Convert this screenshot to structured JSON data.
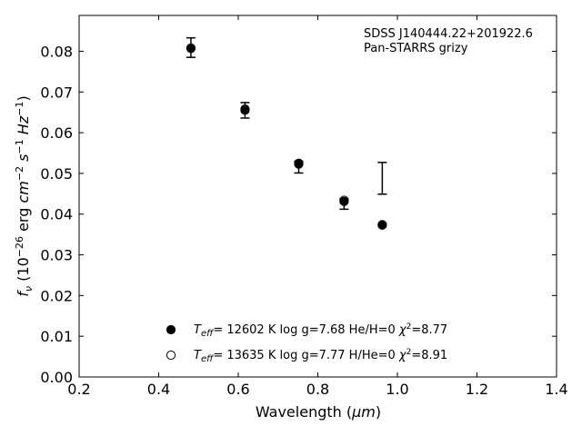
{
  "chart_data": {
    "type": "scatter",
    "xlabel_prefix": "Wavelength (",
    "xlabel_unit": "μm",
    "xlabel_suffix": ")",
    "ylabel_var": "f",
    "ylabel_var_sub": "ν",
    "ylabel_pre": " (10",
    "ylabel_exp1": "−26",
    "ylabel_mid1": " erg ",
    "ylabel_cm": "cm",
    "ylabel_exp2": "−2",
    "ylabel_s": " s",
    "ylabel_exp3": "−1",
    "ylabel_hz": " Hz",
    "ylabel_exp4": "−1",
    "ylabel_close": ")",
    "xlim": [
      0.2,
      1.4
    ],
    "ylim": [
      0.0,
      0.0888
    ],
    "x_ticks": [
      0.2,
      0.4,
      0.6,
      0.8,
      1.0,
      1.2,
      1.4
    ],
    "x_tick_labels": [
      "0.2",
      "0.4",
      "0.6",
      "0.8",
      "1.0",
      "1.2",
      "1.4"
    ],
    "y_ticks": [
      0.0,
      0.01,
      0.02,
      0.03,
      0.04,
      0.05,
      0.06,
      0.07,
      0.08
    ],
    "y_tick_labels": [
      "0.00",
      "0.01",
      "0.02",
      "0.03",
      "0.04",
      "0.05",
      "0.06",
      "0.07",
      "0.08"
    ],
    "grid": false,
    "annotation": [
      "SDSS J140444.22+201922.6",
      "Pan-STARRS grizy"
    ],
    "observed": {
      "x": [
        0.481,
        0.617,
        0.752,
        0.866,
        0.962
      ],
      "y_low": [
        0.0785,
        0.0636,
        0.0501,
        0.0412,
        0.0449
      ],
      "y_high": [
        0.0833,
        0.0674,
        0.053,
        0.0438,
        0.0527
      ]
    },
    "series": [
      {
        "name_T": "T",
        "name_T_sub": "eff",
        "name_rest": "= 12602 K  log g=7.68  He/H=0  ",
        "name_chi": "χ",
        "name_chi_sup": "2",
        "name_tail": "=8.77",
        "marker": "filled",
        "x": [
          0.481,
          0.617,
          0.752,
          0.866,
          0.962
        ],
        "y": [
          0.0807,
          0.0658,
          0.0525,
          0.0431,
          0.0374
        ]
      },
      {
        "name_T": "T",
        "name_T_sub": "eff",
        "name_rest": "= 13635 K  log g=7.77  H/He=0  ",
        "name_chi": "χ",
        "name_chi_sup": "2",
        "name_tail": "=8.91",
        "marker": "open",
        "x": [
          0.481,
          0.617,
          0.752,
          0.866,
          0.962
        ],
        "y": [
          0.0808,
          0.0655,
          0.0523,
          0.0434,
          0.0373
        ]
      }
    ],
    "legend_placement": "lower-center",
    "colors": {
      "marker": "#000000",
      "axis": "#000000"
    }
  }
}
